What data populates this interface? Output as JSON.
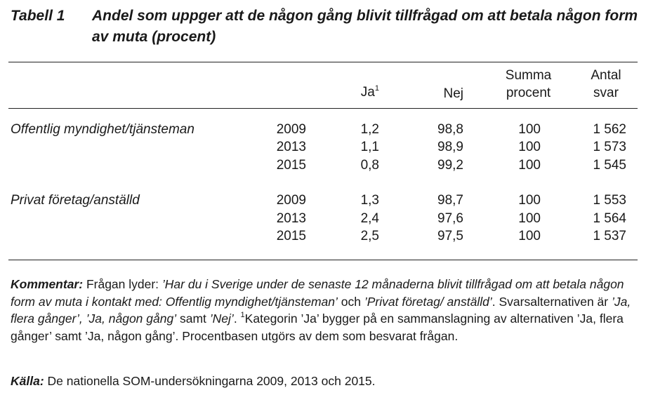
{
  "title": {
    "label": "Tabell 1",
    "text": "Andel som uppger att de någon gång blivit tillfrågad om att betala någon form av muta (procent)"
  },
  "table": {
    "headers": {
      "ja": "Ja",
      "ja_sup": "1",
      "nej": "Nej",
      "summa_line1": "Summa",
      "summa_line2": "procent",
      "antal_line1": "Antal",
      "antal_line2": "svar"
    },
    "groups": [
      {
        "category": "Offentlig myndighet/tjänsteman",
        "rows": [
          {
            "year": "2009",
            "ja": "1,2",
            "nej": "98,8",
            "summa": "100",
            "antal": "1 562"
          },
          {
            "year": "2013",
            "ja": "1,1",
            "nej": "98,9",
            "summa": "100",
            "antal": "1 573"
          },
          {
            "year": "2015",
            "ja": "0,8",
            "nej": "99,2",
            "summa": "100",
            "antal": "1 545"
          }
        ]
      },
      {
        "category": "Privat företag/anställd",
        "rows": [
          {
            "year": "2009",
            "ja": "1,3",
            "nej": "98,7",
            "summa": "100",
            "antal": "1 553"
          },
          {
            "year": "2013",
            "ja": "2,4",
            "nej": "97,6",
            "summa": "100",
            "antal": "1 564"
          },
          {
            "year": "2015",
            "ja": "2,5",
            "nej": "97,5",
            "summa": "100",
            "antal": "1 537"
          }
        ]
      }
    ]
  },
  "comment": {
    "label": "Kommentar:",
    "p1": " Frågan lyder: ",
    "q1": "’Har du i Sverige under de senaste 12 månaderna blivit tillfrågad om att betala någon form av muta i kontakt med: Offentlig myndighet/tjänsteman’",
    "p2": " och ",
    "q2": "’Privat företag/ anställd’",
    "p3": ". Svarsalternativen är ",
    "q3": "’Ja, flera gånger’, ’Ja, någon gång’",
    "p4": " samt ",
    "q4": "’Nej’",
    "p5": ". ",
    "sup": "1",
    "p6": "Kategorin ’Ja’ bygger på en sammanslagning av alternativen ’Ja, flera gånger’ samt ’Ja, någon gång’. Procentbasen utgörs av dem som besvarat frågan."
  },
  "source": {
    "label": "Källa:",
    "text": " De nationella SOM-undersökningarna 2009, 2013 och 2015."
  }
}
